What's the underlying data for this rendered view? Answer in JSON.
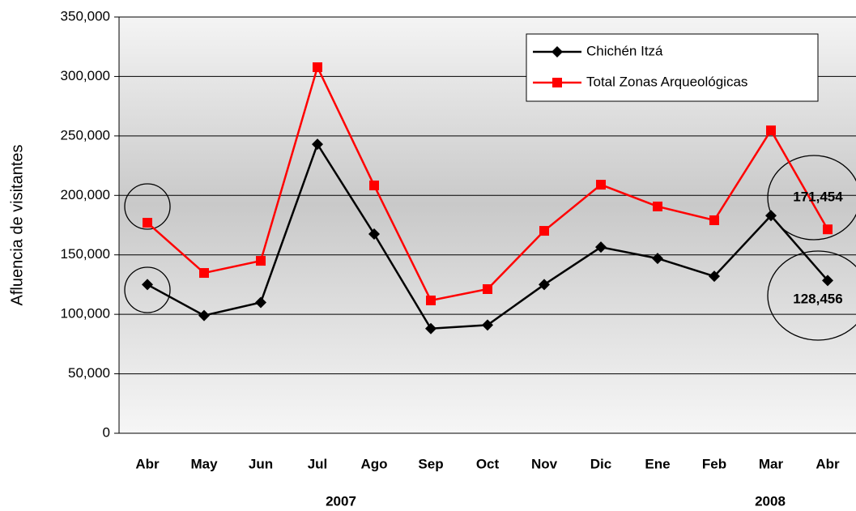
{
  "chart_data": {
    "type": "line",
    "y_axis_label": "Afluencia de visitantes",
    "categories": [
      "Abr",
      "May",
      "Jun",
      "Jul",
      "Ago",
      "Sep",
      "Oct",
      "Nov",
      "Dic",
      "Ene",
      "Feb",
      "Mar",
      "Abr"
    ],
    "year_labels": [
      "2007",
      "2008"
    ],
    "series": [
      {
        "name": "Chichén Itzá",
        "color": "#000000",
        "marker": "diamond",
        "values": [
          125000,
          99000,
          110000,
          243000,
          167500,
          88000,
          91000,
          125000,
          156500,
          147000,
          132000,
          183000,
          128456
        ],
        "value_labels": [
          null,
          null,
          null,
          null,
          null,
          null,
          null,
          null,
          null,
          null,
          null,
          null,
          "128,456"
        ]
      },
      {
        "name": "Total Zonas Arqueológicas",
        "color": "#ff0000",
        "marker": "square",
        "values": [
          177000,
          134800,
          145000,
          307800,
          208400,
          111700,
          121200,
          170200,
          209000,
          190700,
          179100,
          254700,
          171454
        ],
        "value_labels": [
          null,
          null,
          null,
          null,
          null,
          null,
          null,
          null,
          null,
          null,
          null,
          null,
          "171,454"
        ]
      }
    ],
    "ylim": [
      0,
      350000
    ],
    "yticks": [
      0,
      {
        "value": 50000,
        "label": "50,000"
      },
      {
        "value": 100000,
        "label": "100,000"
      },
      {
        "value": 150000,
        "label": "150,000"
      },
      {
        "value": 200000,
        "label": "200,000"
      },
      {
        "value": 250000,
        "label": "250,000"
      },
      {
        "value": 300000,
        "label": "300,000"
      },
      {
        "value": 350000,
        "label": "350,000"
      }
    ],
    "grid": true,
    "legend": "top-right"
  }
}
